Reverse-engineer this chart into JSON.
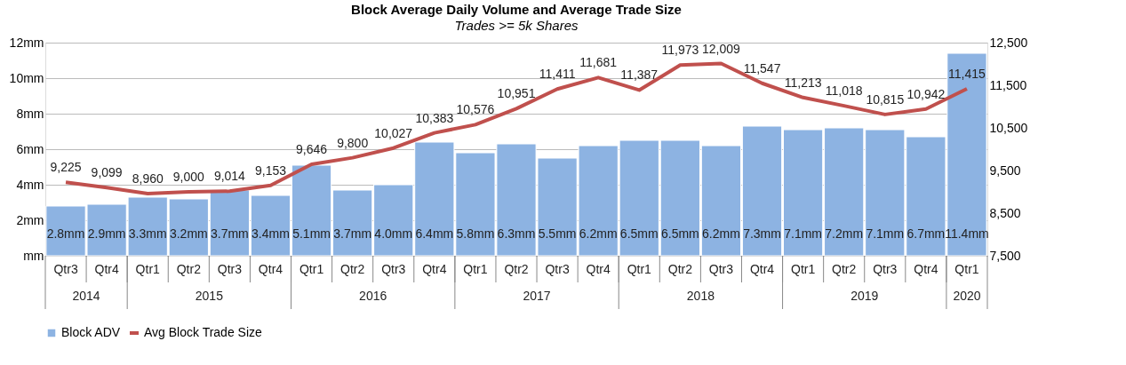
{
  "chart_data": {
    "type": "bar",
    "title": "Block Average Daily Volume and Average Trade Size",
    "subtitle": "Trades >= 5k Shares",
    "categories": [
      "Qtr3",
      "Qtr4",
      "Qtr1",
      "Qtr2",
      "Qtr3",
      "Qtr4",
      "Qtr1",
      "Qtr2",
      "Qtr3",
      "Qtr4",
      "Qtr1",
      "Qtr2",
      "Qtr3",
      "Qtr4",
      "Qtr1",
      "Qtr2",
      "Qtr3",
      "Qtr4",
      "Qtr1",
      "Qtr2",
      "Qtr3",
      "Qtr4",
      "Qtr1"
    ],
    "annotations": [
      "2014",
      "2015",
      "2016",
      "2017",
      "2018",
      "2019",
      "2020"
    ],
    "series": [
      {
        "name": "Block ADV",
        "color": "#8db3e2",
        "values": [
          2.8,
          2.9,
          3.3,
          3.2,
          3.7,
          3.4,
          5.1,
          3.7,
          4.0,
          6.4,
          5.8,
          6.3,
          5.5,
          6.2,
          6.5,
          6.5,
          6.2,
          7.3,
          7.1,
          7.2,
          7.1,
          6.7,
          11.4
        ],
        "value_labels": [
          "2.8mm",
          "2.9mm",
          "3.3mm",
          "3.2mm",
          "3.7mm",
          "3.4mm",
          "5.1mm",
          "3.7mm",
          "4.0mm",
          "6.4mm",
          "5.8mm",
          "6.3mm",
          "5.5mm",
          "6.2mm",
          "6.5mm",
          "6.5mm",
          "6.2mm",
          "7.3mm",
          "7.1mm",
          "7.2mm",
          "7.1mm",
          "6.7mm",
          "11.4mm"
        ]
      },
      {
        "name": "Avg Block Trade Size",
        "type": "line",
        "axis": "y2",
        "color": "#c0504d",
        "values": [
          9225,
          9099,
          8960,
          9000,
          9014,
          9153,
          9646,
          9800,
          10027,
          10383,
          10576,
          10951,
          11411,
          11681,
          11387,
          11973,
          12009,
          11547,
          11213,
          11018,
          10815,
          10942,
          11415
        ],
        "value_labels": [
          "9,225",
          "9,099",
          "8,960",
          "9,000",
          "9,014",
          "9,153",
          "9,646",
          "9,800",
          "10,027",
          "10,383",
          "10,576",
          "10,951",
          "11,411",
          "11,681",
          "11,387",
          "11,973",
          "12,009",
          "11,547",
          "11,213",
          "11,018",
          "10,815",
          "10,942",
          "11,415"
        ]
      }
    ],
    "ylim": [
      0,
      12
    ],
    "yticks": [
      {
        "value": 0,
        "label": "mm"
      },
      {
        "value": 2,
        "label": "2mm"
      },
      {
        "value": 4,
        "label": "4mm"
      },
      {
        "value": 6,
        "label": "6mm"
      },
      {
        "value": 8,
        "label": "8mm"
      },
      {
        "value": 10,
        "label": "10mm"
      },
      {
        "value": 12,
        "label": "12mm"
      }
    ],
    "y2lim": [
      7500,
      12500
    ],
    "y2ticks": [
      {
        "value": 7500,
        "label": "7,500"
      },
      {
        "value": 8500,
        "label": "8,500"
      },
      {
        "value": 9500,
        "label": "9,500"
      },
      {
        "value": 10500,
        "label": "10,500"
      },
      {
        "value": 11500,
        "label": "11,500"
      },
      {
        "value": 12500,
        "label": "12,500"
      }
    ],
    "grid": "y",
    "legend": "bottom"
  }
}
